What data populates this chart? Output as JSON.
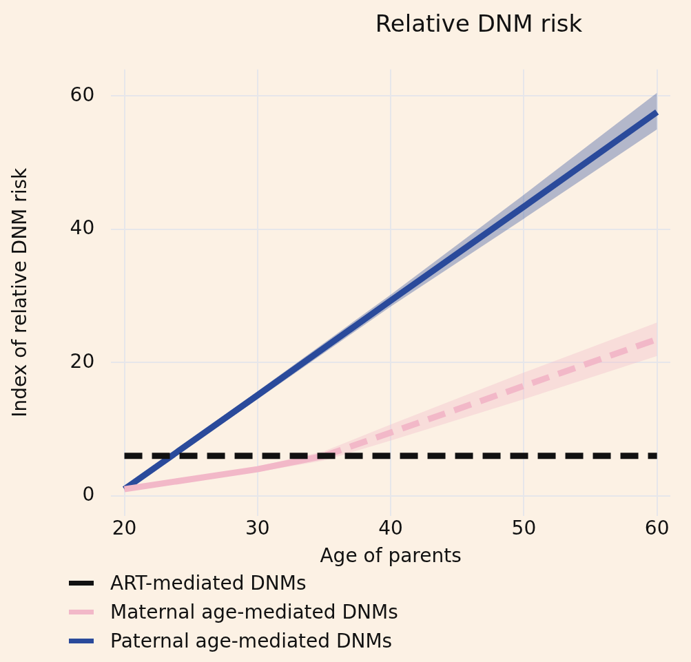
{
  "chart_data": {
    "type": "line",
    "title": "Relative DNM risk",
    "xlabel": "Age of parents",
    "ylabel": "Index of relative DNM risk",
    "xlim": [
      19,
      61
    ],
    "xticks": [
      20,
      30,
      40,
      50,
      60
    ],
    "ylim": [
      -3,
      64
    ],
    "yticks": [
      0,
      20,
      40,
      60
    ],
    "grid": true,
    "legend": "bottom",
    "marker": "none",
    "series": [
      {
        "name": "ART-mediated DNMs",
        "color": "#111111",
        "line_style": "dashed",
        "x": [
          20,
          60
        ],
        "values": [
          6,
          6
        ]
      },
      {
        "name": "Maternal age-mediated DNMs",
        "color": "#f2b8c8",
        "line_style": "solid",
        "x": [
          20,
          30,
          35
        ],
        "values": [
          1,
          4,
          6
        ],
        "lower": [
          0.8,
          3.6,
          5.3
        ],
        "upper": [
          1.2,
          4.4,
          6.7
        ]
      },
      {
        "color": "#f2b8c8",
        "line_style": "dashed",
        "x": [
          35,
          40,
          50,
          60
        ],
        "values": [
          6,
          9.5,
          16.5,
          23.5
        ],
        "lower": [
          5.3,
          8.3,
          14.5,
          21
        ],
        "upper": [
          6.7,
          10.7,
          18.5,
          26
        ]
      },
      {
        "name": "Paternal age-mediated DNMs",
        "color": "#2a4a9b",
        "line_style": "solid",
        "x": [
          20,
          30,
          40,
          50,
          60
        ],
        "values": [
          1,
          15.1,
          29.3,
          43.4,
          57.6
        ],
        "lower": [
          0.7,
          14.5,
          28.4,
          41.6,
          55
        ],
        "upper": [
          1.3,
          15.7,
          30.2,
          45.2,
          60.5
        ]
      }
    ]
  }
}
